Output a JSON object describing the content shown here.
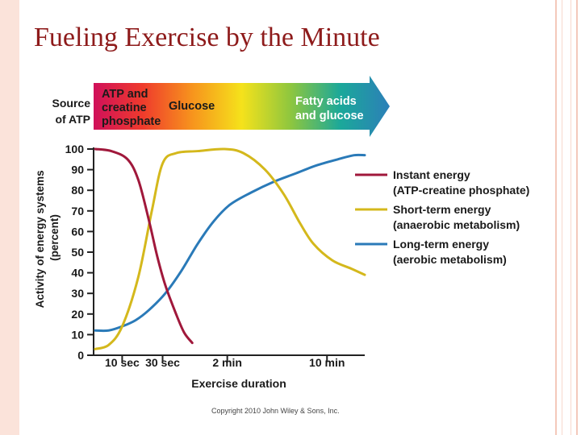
{
  "slide": {
    "title": "Fueling Exercise by the Minute",
    "copyright": "Copyright 2010 John Wiley & Sons, Inc."
  },
  "chart_data": {
    "type": "line",
    "title": "",
    "xlabel": "Exercise duration",
    "ylabel": "Activity of energy systems (percent)",
    "ylim": [
      0,
      100
    ],
    "yticks": [
      0,
      10,
      20,
      30,
      40,
      50,
      60,
      70,
      80,
      90,
      100
    ],
    "x_ticks": [
      {
        "label": "10 sec",
        "pos": 0.1
      },
      {
        "label": "30 sec",
        "pos": 0.25
      },
      {
        "label": "2 min",
        "pos": 0.49
      },
      {
        "label": "10 min",
        "pos": 0.86
      }
    ],
    "source_bar": {
      "label_line1": "Source",
      "label_line2": "of ATP",
      "segments": [
        {
          "lines": [
            "ATP and",
            "creatine",
            "phosphate"
          ]
        },
        {
          "lines": [
            "Glucose"
          ]
        },
        {
          "lines": [
            "Fatty acids",
            "and glucose"
          ]
        }
      ],
      "gradient": [
        "#d0105a",
        "#ef3b2c",
        "#f7941d",
        "#f5e21b",
        "#8dc63f",
        "#1ba89a",
        "#2c7fb8"
      ]
    },
    "series": [
      {
        "name": "Instant energy",
        "description": "(ATP-creatine phosphate)",
        "color": "#a0183b",
        "points": [
          [
            0.0,
            100
          ],
          [
            0.06,
            99
          ],
          [
            0.12,
            95
          ],
          [
            0.16,
            85
          ],
          [
            0.2,
            65
          ],
          [
            0.23,
            48
          ],
          [
            0.26,
            34
          ],
          [
            0.3,
            20
          ],
          [
            0.33,
            11
          ],
          [
            0.36,
            6
          ]
        ]
      },
      {
        "name": "Short-term energy",
        "description": "(anaerobic metabolism)",
        "color": "#d4b81c",
        "points": [
          [
            0.0,
            3
          ],
          [
            0.05,
            5
          ],
          [
            0.1,
            14
          ],
          [
            0.16,
            38
          ],
          [
            0.21,
            70
          ],
          [
            0.25,
            93
          ],
          [
            0.3,
            98
          ],
          [
            0.38,
            99
          ],
          [
            0.48,
            100
          ],
          [
            0.55,
            98
          ],
          [
            0.63,
            90
          ],
          [
            0.7,
            78
          ],
          [
            0.76,
            64
          ],
          [
            0.81,
            54
          ],
          [
            0.88,
            46
          ],
          [
            0.95,
            42
          ],
          [
            1.0,
            39
          ]
        ]
      },
      {
        "name": "Long-term energy",
        "description": "(aerobic metabolism)",
        "color": "#2a7ab8",
        "points": [
          [
            0.0,
            12
          ],
          [
            0.05,
            12
          ],
          [
            0.1,
            14
          ],
          [
            0.15,
            17
          ],
          [
            0.2,
            22
          ],
          [
            0.26,
            30
          ],
          [
            0.32,
            41
          ],
          [
            0.38,
            54
          ],
          [
            0.44,
            65
          ],
          [
            0.5,
            73
          ],
          [
            0.58,
            79
          ],
          [
            0.66,
            84
          ],
          [
            0.74,
            88
          ],
          [
            0.82,
            92
          ],
          [
            0.9,
            95
          ],
          [
            0.96,
            97
          ],
          [
            1.0,
            97
          ]
        ]
      }
    ]
  }
}
